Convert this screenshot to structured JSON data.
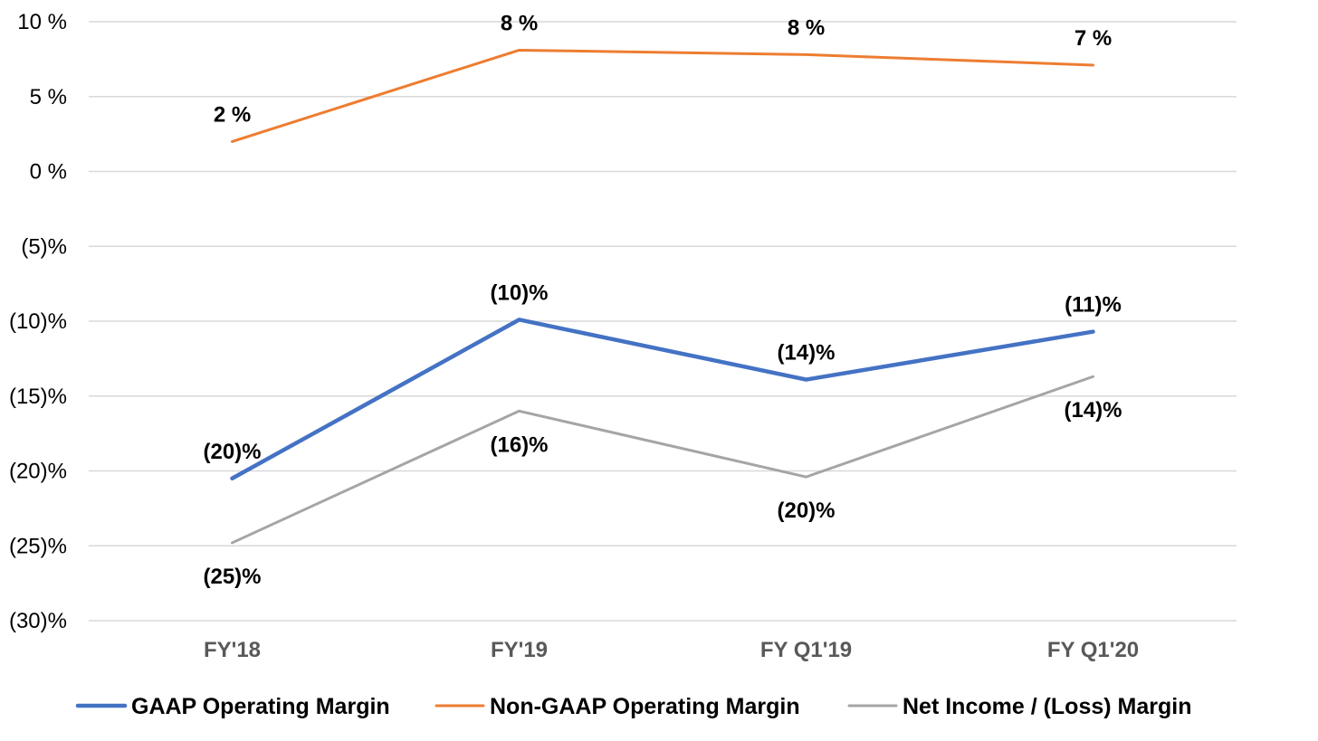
{
  "chart_data": {
    "type": "line",
    "title": "",
    "xlabel": "",
    "ylabel": "",
    "categories": [
      "FY'18",
      "FY'19",
      "FY Q1'19",
      "FY Q1'20"
    ],
    "ylim": [
      -30,
      10
    ],
    "yticks": [
      {
        "value": 10,
        "label": "10 %"
      },
      {
        "value": 5,
        "label": "5 %"
      },
      {
        "value": 0,
        "label": "0 %"
      },
      {
        "value": -5,
        "label": "(5)%"
      },
      {
        "value": -10,
        "label": "(10)%"
      },
      {
        "value": -15,
        "label": "(15)%"
      },
      {
        "value": -20,
        "label": "(20)%"
      },
      {
        "value": -25,
        "label": "(25)%"
      },
      {
        "value": -30,
        "label": "(30)%"
      }
    ],
    "grid": true,
    "legend_position": "bottom",
    "series": [
      {
        "name": "GAAP Operating Margin",
        "color": "#4472C4",
        "values": [
          -20.5,
          -9.9,
          -13.9,
          -10.7
        ],
        "labels": [
          "(20)%",
          "(10)%",
          "(14)%",
          "(11)%"
        ],
        "label_positions": [
          "above",
          "above",
          "above",
          "above"
        ]
      },
      {
        "name": "Non-GAAP Operating Margin",
        "color": "#ED7D31",
        "values": [
          2.0,
          8.1,
          7.8,
          7.1
        ],
        "labels": [
          "2 %",
          "8 %",
          "8 %",
          "7 %"
        ],
        "label_positions": [
          "above",
          "above",
          "above",
          "above"
        ]
      },
      {
        "name": "Net Income / (Loss) Margin",
        "color": "#A5A5A5",
        "values": [
          -24.8,
          -16.0,
          -20.4,
          -13.7
        ],
        "labels": [
          "(25)%",
          "(16)%",
          "(20)%",
          "(14)%"
        ],
        "label_positions": [
          "below",
          "below",
          "below",
          "below"
        ]
      }
    ]
  }
}
